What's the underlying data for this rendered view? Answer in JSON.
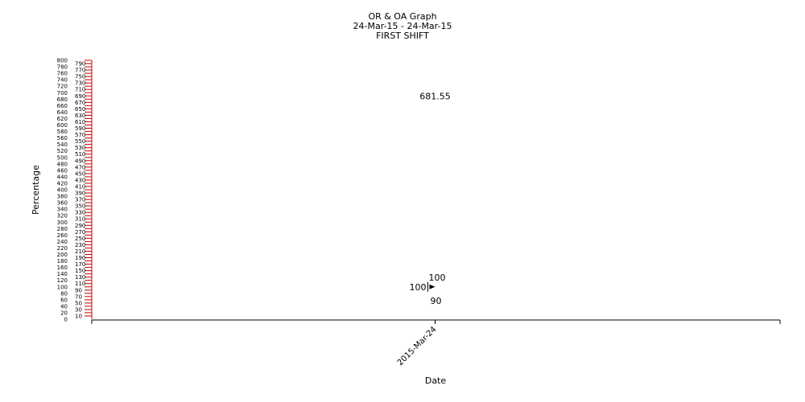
{
  "chart_data": {
    "type": "scatter",
    "title": "OR & OA Graph",
    "subtitle_lines": [
      "24-Mar-15 - 24-Mar-15",
      "FIRST SHIFT"
    ],
    "xlabel": "Date",
    "ylabel": "Percentage",
    "x_categories": [
      "2015-Mar-24"
    ],
    "ylim": [
      0,
      800
    ],
    "y_major_step": 20,
    "y_minor_step": 10,
    "grid": false,
    "axis_color": "#cc0000",
    "points": [
      {
        "category": "2015-Mar-24",
        "value": 681.55,
        "label": "681.55"
      },
      {
        "category": "2015-Mar-24",
        "value": 100,
        "label": "100"
      },
      {
        "category": "2015-Mar-24",
        "value": 100,
        "label": "100"
      },
      {
        "category": "2015-Mar-24",
        "value": 90,
        "label": "90"
      }
    ]
  }
}
